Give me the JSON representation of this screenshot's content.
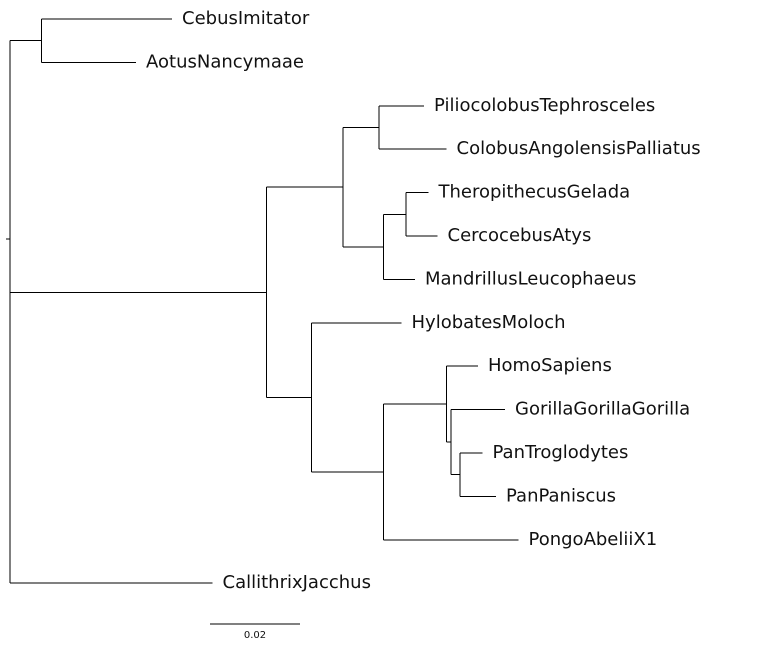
{
  "tree": {
    "leaves": [
      {
        "id": "cebus",
        "label": "CebusImitator"
      },
      {
        "id": "aotus",
        "label": "AotusNancymaae"
      },
      {
        "id": "pilio",
        "label": "PiliocolobusTephrosceles"
      },
      {
        "id": "colobus",
        "label": "ColobusAngolensisPalliatus"
      },
      {
        "id": "thero",
        "label": "TheropithecusGelada"
      },
      {
        "id": "cerco",
        "label": "CercocebusAtys"
      },
      {
        "id": "mandr",
        "label": "MandrillusLeucophaeus"
      },
      {
        "id": "hylo",
        "label": "HylobatesMoloch"
      },
      {
        "id": "homo",
        "label": "HomoSapiens"
      },
      {
        "id": "gorilla",
        "label": "GorillaGorillaGorilla"
      },
      {
        "id": "pantro",
        "label": "PanTroglodytes"
      },
      {
        "id": "panpan",
        "label": "PanPaniscus"
      },
      {
        "id": "pongo",
        "label": "PongoAbeliiX1"
      },
      {
        "id": "calli",
        "label": "CallithrixJacchus"
      }
    ],
    "newick": "((CebusImitator:0.029,AotusNancymaae:0.021):0.007,((((PiliocolobusTephrosceles:0.01,ColobusAngolensisPalliatus:0.015):0.008,((TheropithecusGelada:0.005,CercocebusAtys:0.007):0.005,MandrillusLeucophaeus:0.007):0.009):0.017,(HylobatesMoloch:0.02,((HomoSapiens:0.007,(GorillaGorillaGorilla:0.012,(PanTroglodytes:0.005,PanPaniscus:0.008):0.002):0.001):0.014,PongoAbeliiX1:0.03):0.016):0.01):0.057,CallithrixJacchus:0.045):0;",
    "scale_bar": {
      "label": "0.02",
      "length": 0.02
    }
  }
}
